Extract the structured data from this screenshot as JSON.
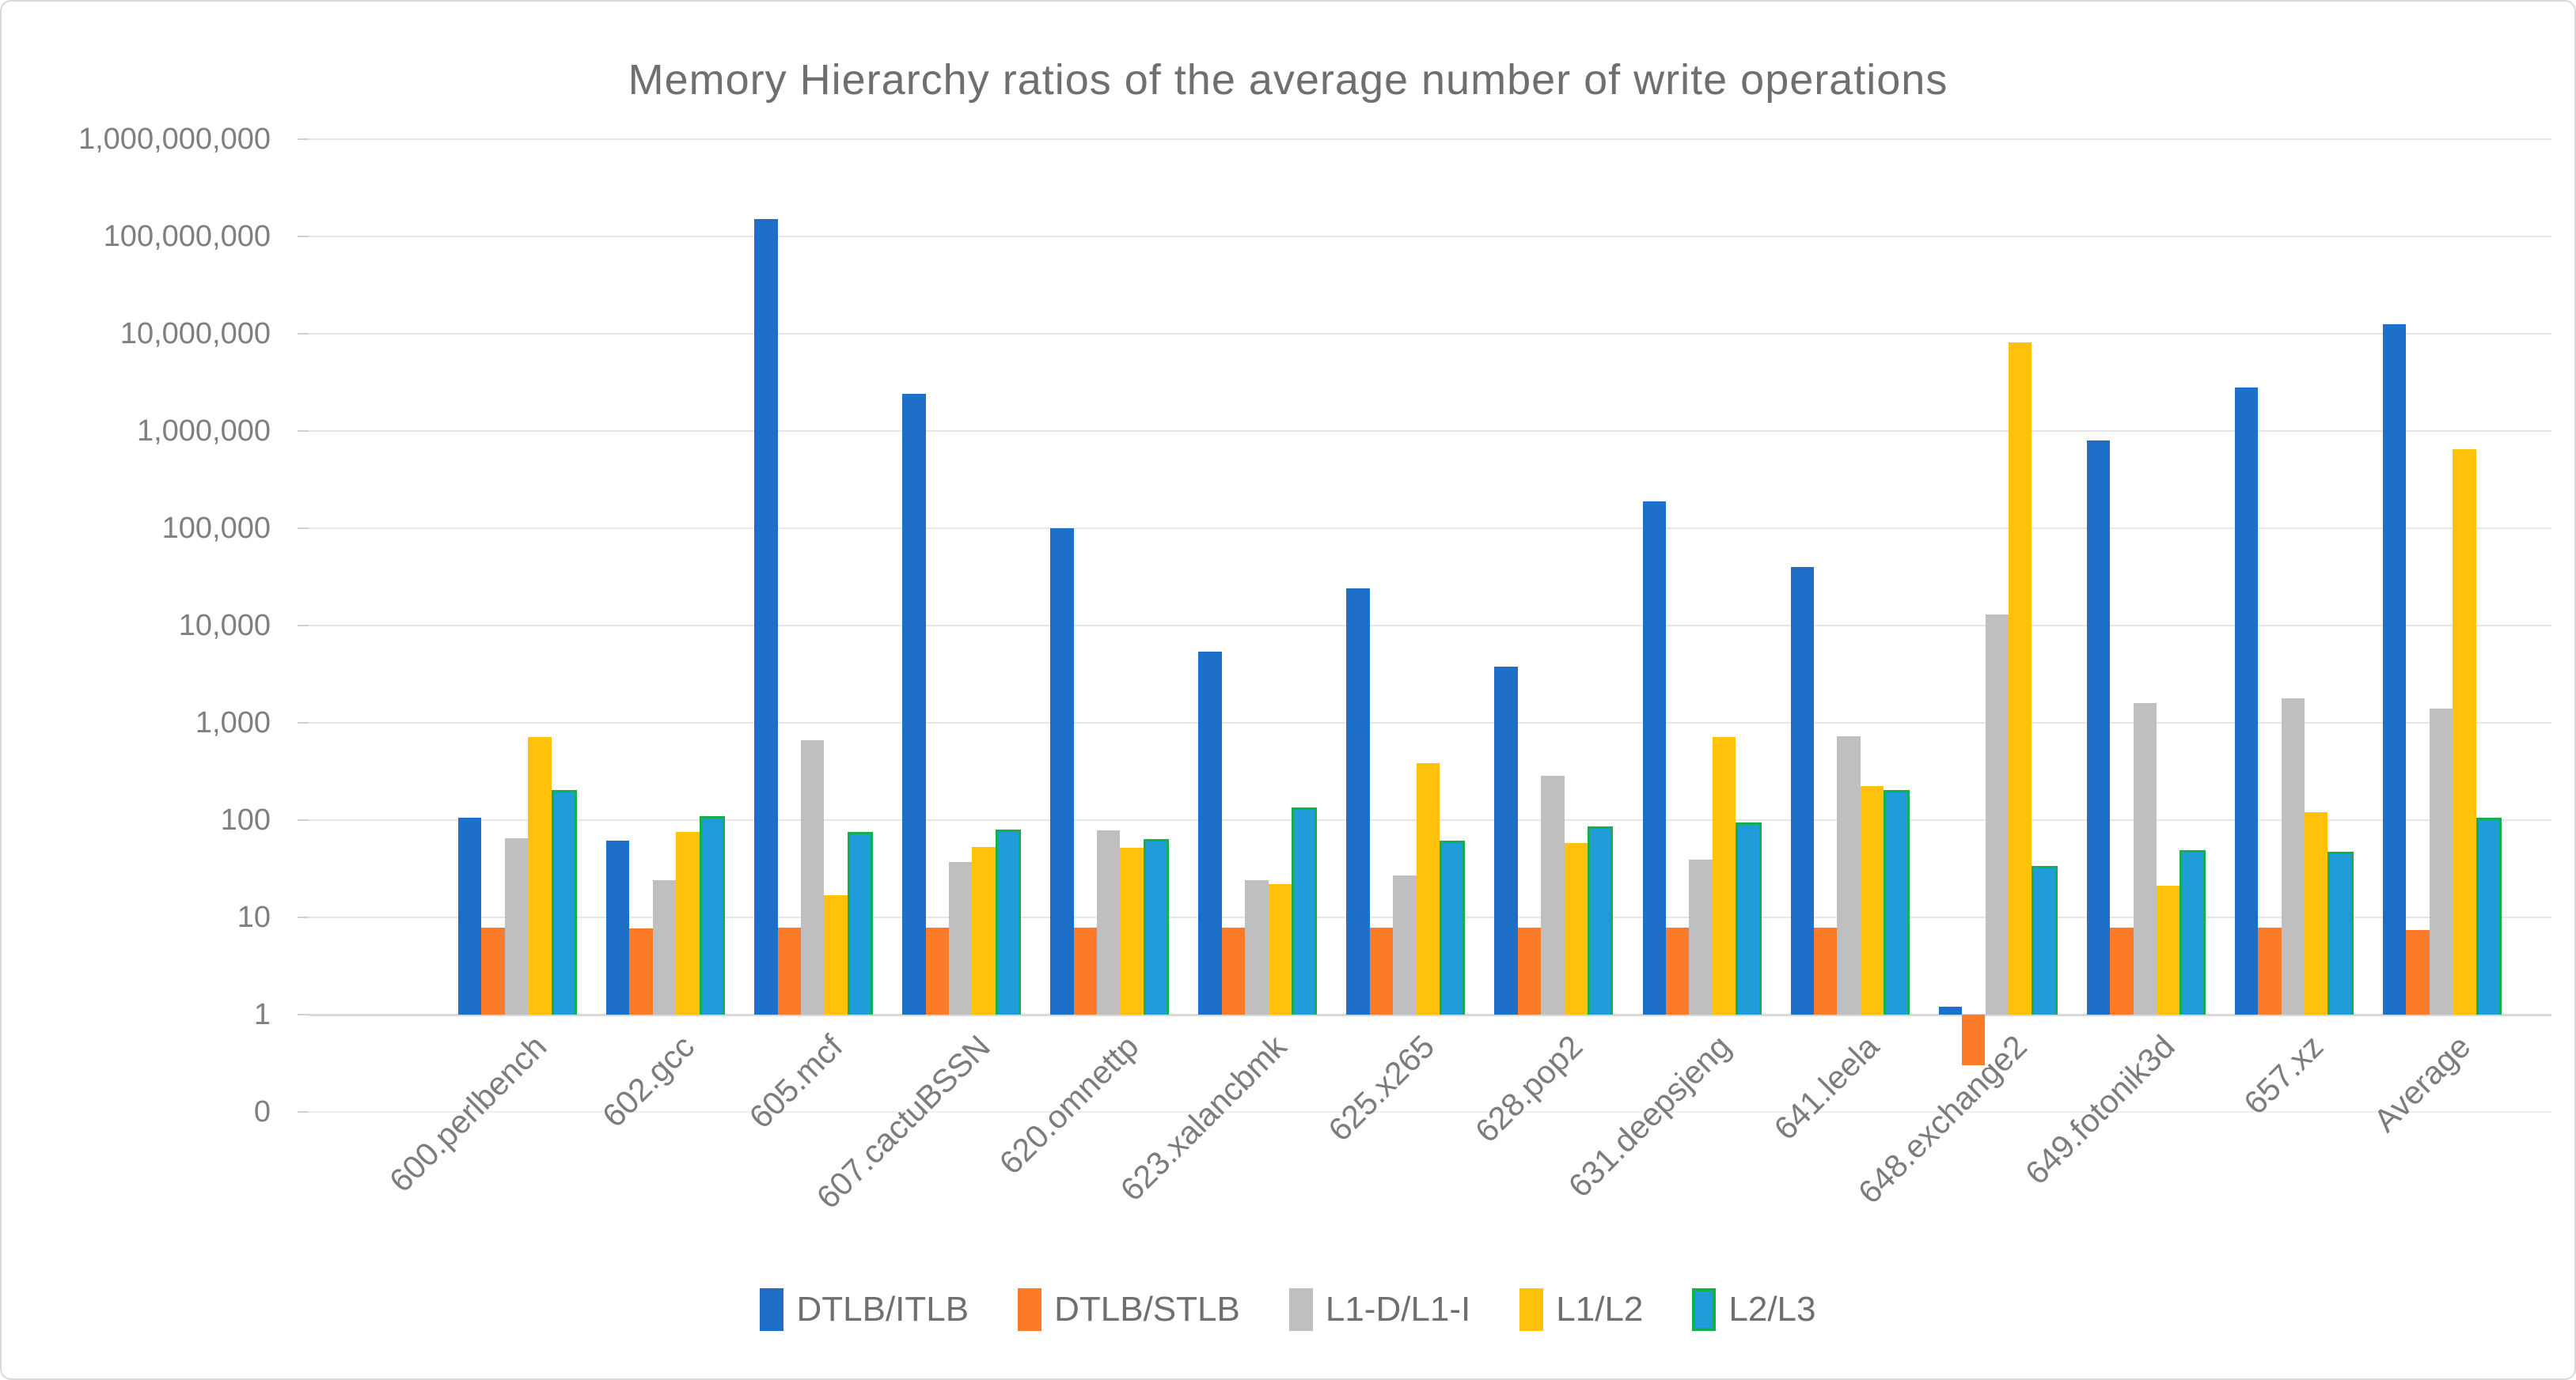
{
  "title": "Memory Hierarchy ratios of the average number of write operations",
  "y_axis": {
    "scale": "log10",
    "labels": [
      {
        "text": "1,000,000,000",
        "value": 1000000000
      },
      {
        "text": "100,000,000",
        "value": 100000000
      },
      {
        "text": "10,000,000",
        "value": 10000000
      },
      {
        "text": "1,000,000",
        "value": 1000000
      },
      {
        "text": "100,000",
        "value": 100000
      },
      {
        "text": "10,000",
        "value": 10000
      },
      {
        "text": "1,000",
        "value": 1000
      },
      {
        "text": "100",
        "value": 100
      },
      {
        "text": "10",
        "value": 10
      },
      {
        "text": "1",
        "value": 1
      },
      {
        "text": "0",
        "value": 0
      }
    ],
    "note": "bottom label 0 sits one decade below 1; bars are drawn from the 1 line; values below 1 hang downward"
  },
  "chart_data": {
    "type": "bar",
    "title": "Memory Hierarchy ratios of the average number of write operations",
    "xlabel": "",
    "ylabel": "",
    "ylim": [
      0.1,
      1000000000
    ],
    "grid": true,
    "legend_position": "bottom",
    "categories": [
      "600.perlbench",
      "602.gcc",
      "605.mcf",
      "607.cactuBSSN",
      "620.omnettp",
      "623.xalancbmk",
      "625.x265",
      "628.pop2",
      "631.deepsjeng",
      "641.leela",
      "648.exchange2",
      "649.fotonik3d",
      "657.xz",
      "Average"
    ],
    "series": [
      {
        "name": "DTLB/ITLB",
        "color": "#1E6FC8",
        "border": null,
        "values": [
          105,
          62,
          150000000,
          2400000,
          100000,
          5400,
          24000,
          3800,
          190000,
          40000,
          1.2,
          800000,
          2800000,
          12500000
        ]
      },
      {
        "name": "DTLB/STLB",
        "color": "#FB7B28",
        "border": null,
        "values": [
          7.9,
          7.7,
          7.9,
          7.9,
          7.9,
          7.9,
          7.9,
          7.9,
          7.9,
          7.9,
          0.3,
          7.9,
          7.9,
          7.4
        ]
      },
      {
        "name": "L1-D/L1-I",
        "color": "#BFBFBF",
        "border": null,
        "values": [
          65,
          24,
          660,
          37,
          78,
          24,
          27,
          285,
          39,
          730,
          13000,
          1600,
          1800,
          1400
        ]
      },
      {
        "name": "L1/L2",
        "color": "#FFC10A",
        "border": null,
        "values": [
          710,
          76,
          17,
          53,
          52,
          22,
          385,
          58,
          720,
          225,
          8200000,
          21,
          120,
          650000
        ]
      },
      {
        "name": "L2/L3",
        "color": "#209CD8",
        "border": "#12B04E",
        "values": [
          205,
          110,
          75,
          80,
          64,
          135,
          61,
          86,
          95,
          205,
          34,
          49,
          47,
          105
        ]
      }
    ]
  },
  "legend": {
    "items": [
      "DTLB/ITLB",
      "DTLB/STLB",
      "L1-D/L1-I",
      "L1/L2",
      "L2/L3"
    ]
  }
}
